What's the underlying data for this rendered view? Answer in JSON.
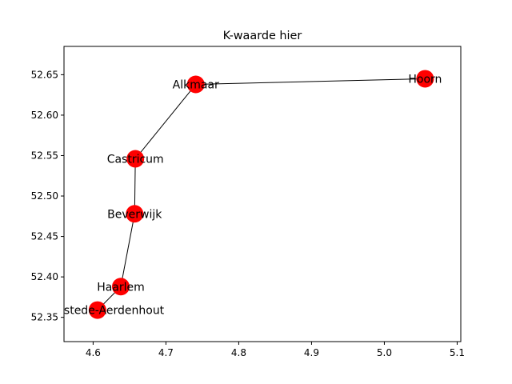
{
  "chart_data": {
    "type": "scatter",
    "title": "K-waarde hier",
    "xlabel": "",
    "ylabel": "",
    "xlim": [
      4.56,
      5.105
    ],
    "ylim": [
      52.32,
      52.685
    ],
    "x_ticks": [
      "4.6",
      "4.7",
      "4.8",
      "4.9",
      "5.0",
      "5.1"
    ],
    "x_tick_values": [
      4.6,
      4.7,
      4.8,
      4.9,
      5.0,
      5.1
    ],
    "y_ticks": [
      "52.35",
      "52.40",
      "52.45",
      "52.50",
      "52.55",
      "52.60",
      "52.65"
    ],
    "y_tick_values": [
      52.35,
      52.4,
      52.45,
      52.5,
      52.55,
      52.6,
      52.65
    ],
    "grid": false,
    "marker_color": "#ff0000",
    "edge_color": "#000000",
    "nodes": [
      {
        "label": "Hoorn",
        "x": 5.056,
        "y": 52.645
      },
      {
        "label": "Alkmaar",
        "x": 4.741,
        "y": 52.638
      },
      {
        "label": "Castricum",
        "x": 4.658,
        "y": 52.546
      },
      {
        "label": "Beverwijk",
        "x": 4.657,
        "y": 52.478
      },
      {
        "label": "Haarlem",
        "x": 4.638,
        "y": 52.388
      },
      {
        "label": "Heemstede-Aerdenhout",
        "x": 4.606,
        "y": 52.359
      }
    ],
    "edges": [
      [
        0,
        1
      ],
      [
        1,
        2
      ],
      [
        2,
        3
      ],
      [
        3,
        4
      ],
      [
        4,
        5
      ]
    ]
  }
}
